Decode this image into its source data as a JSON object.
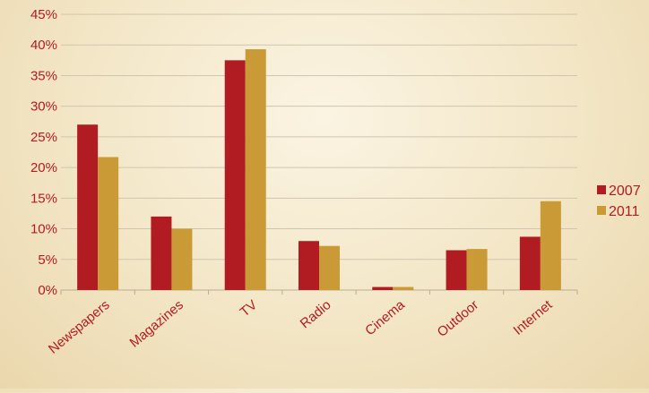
{
  "chart_data": {
    "type": "bar",
    "categories": [
      "Newspapers",
      "Magazines",
      "TV",
      "Radio",
      "Cinema",
      "Outdoor",
      "Internet"
    ],
    "series": [
      {
        "name": "2007",
        "color": "#b11c22",
        "values": [
          27.0,
          12.0,
          37.5,
          8.0,
          0.5,
          6.5,
          8.7
        ]
      },
      {
        "name": "2011",
        "color": "#c99a36",
        "values": [
          21.7,
          10.0,
          39.3,
          7.2,
          0.5,
          6.7,
          14.5
        ]
      }
    ],
    "y_ticks": [
      "0%",
      "5%",
      "10%",
      "15%",
      "20%",
      "25%",
      "30%",
      "35%",
      "40%",
      "45%"
    ],
    "ylim": [
      0,
      45
    ],
    "title": "",
    "xlabel": "",
    "ylabel": "",
    "grid": true,
    "legend_position": "right",
    "text_color": "#b11c22"
  }
}
